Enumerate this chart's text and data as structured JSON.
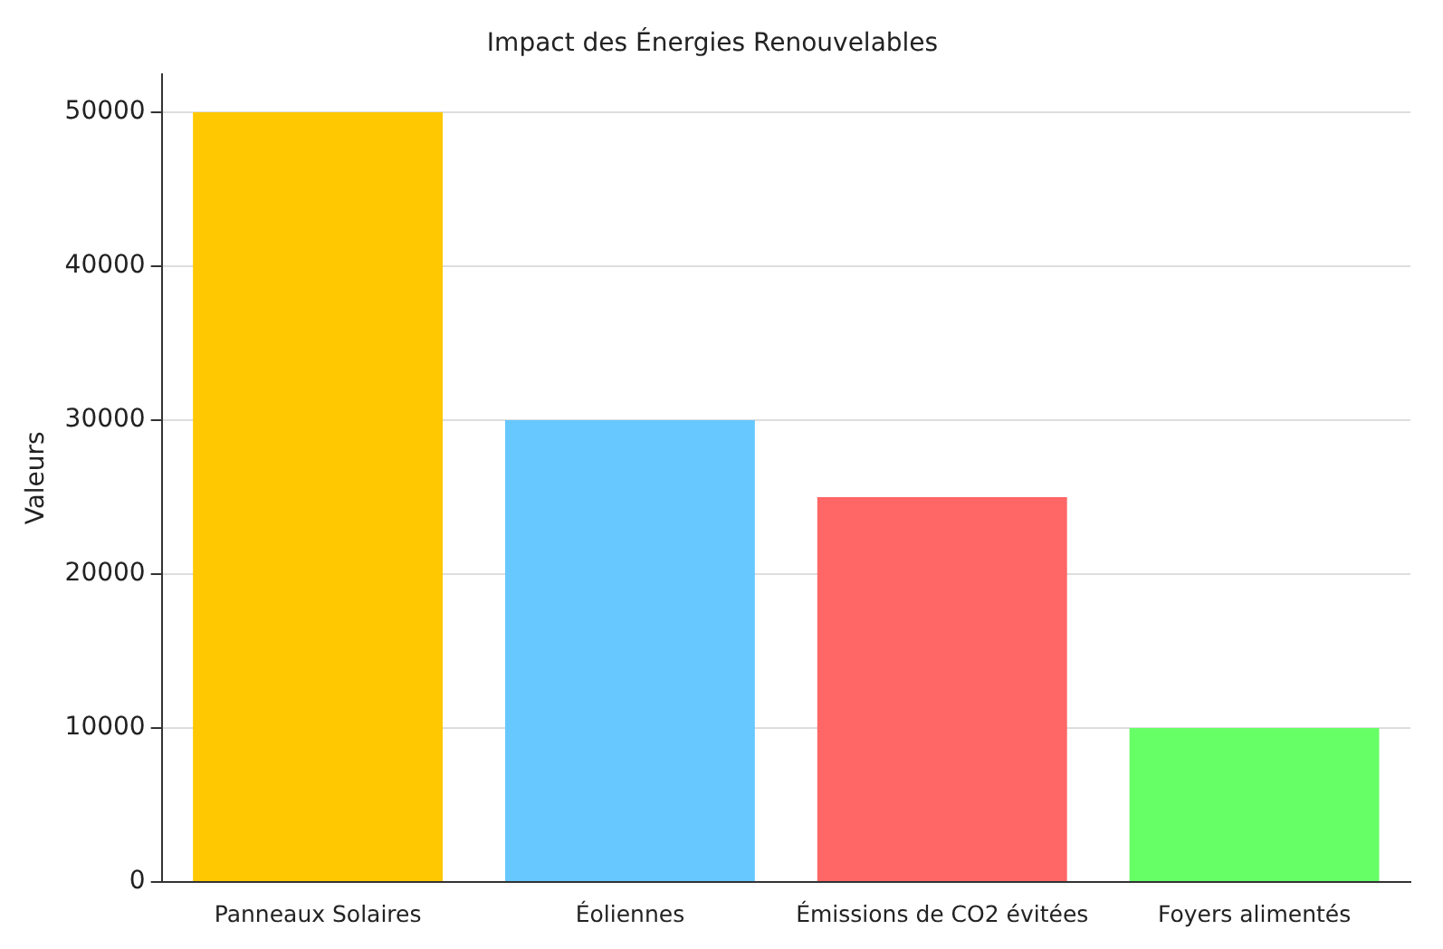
{
  "chart_data": {
    "type": "bar",
    "title": "Impact des Énergies Renouvelables",
    "ylabel": "Valeurs",
    "categories": [
      "Panneaux Solaires",
      "Éoliennes",
      "Émissions de CO2 évitées",
      "Foyers alimentés"
    ],
    "values": [
      50000,
      30000,
      25000,
      10000
    ],
    "colors": [
      "#ffc800",
      "#66c8ff",
      "#ff6666",
      "#66ff66"
    ],
    "ylim": [
      0,
      52500
    ],
    "yticks": [
      0,
      10000,
      20000,
      30000,
      40000,
      50000
    ],
    "grid": "y"
  }
}
